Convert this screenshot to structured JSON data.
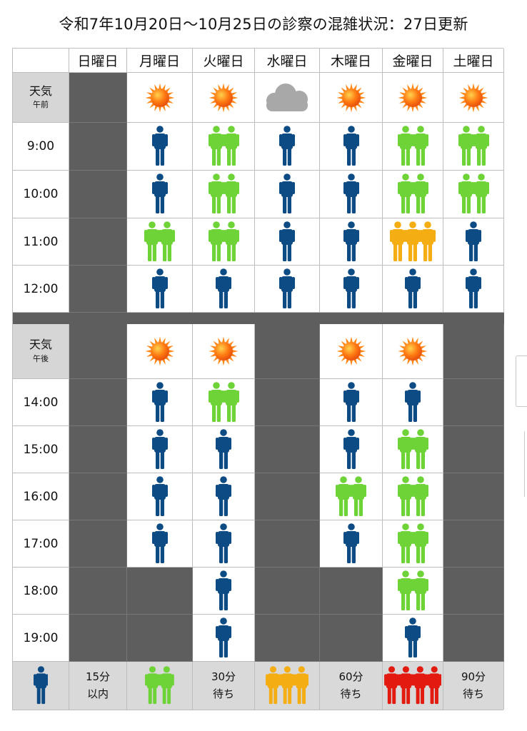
{
  "title": "令和7年10月20日〜10月25日の診察の混雑状況：27日更新",
  "days": [
    "日曜日",
    "月曜日",
    "火曜日",
    "水曜日",
    "木曜日",
    "金曜日",
    "土曜日"
  ],
  "colors": {
    "p1": "#0d4b84",
    "p2": "#6ed337",
    "p3": "#f4ad12",
    "p4": "#e21a10",
    "dark": "#5e5e5e"
  },
  "morning": {
    "weather_label": "天気",
    "weather_sub": "午前",
    "weather": [
      "closed",
      "sun",
      "sun",
      "cloud",
      "sun",
      "sun",
      "sun"
    ],
    "rows": [
      {
        "time": "9:00",
        "levels": [
          0,
          1,
          2,
          1,
          1,
          2,
          2
        ]
      },
      {
        "time": "10:00",
        "levels": [
          0,
          1,
          2,
          1,
          1,
          2,
          2
        ]
      },
      {
        "time": "11:00",
        "levels": [
          0,
          2,
          2,
          1,
          1,
          3,
          1
        ]
      },
      {
        "time": "12:00",
        "levels": [
          0,
          1,
          1,
          1,
          1,
          1,
          1
        ]
      }
    ]
  },
  "afternoon": {
    "weather_label": "天気",
    "weather_sub": "午後",
    "weather": [
      "closed",
      "sun",
      "sun",
      "closed",
      "sun",
      "sun",
      "closed"
    ],
    "rows": [
      {
        "time": "14:00",
        "levels": [
          0,
          1,
          2,
          0,
          1,
          1,
          0
        ]
      },
      {
        "time": "15:00",
        "levels": [
          0,
          1,
          1,
          0,
          1,
          2,
          0
        ]
      },
      {
        "time": "16:00",
        "levels": [
          0,
          1,
          1,
          0,
          2,
          2,
          0
        ]
      },
      {
        "time": "17:00",
        "levels": [
          0,
          1,
          1,
          0,
          1,
          2,
          0
        ]
      },
      {
        "time": "18:00",
        "levels": [
          0,
          0,
          1,
          0,
          0,
          2,
          0
        ]
      },
      {
        "time": "19:00",
        "levels": [
          0,
          0,
          1,
          0,
          0,
          1,
          0
        ]
      }
    ]
  },
  "legend": [
    {
      "level": 1,
      "line1": "15分",
      "line2": "以内"
    },
    {
      "level": 2,
      "line1": "30分",
      "line2": "待ち"
    },
    {
      "level": 3,
      "line1": "60分",
      "line2": "待ち"
    },
    {
      "level": 4,
      "line1": "90分",
      "line2": "待ち"
    }
  ]
}
